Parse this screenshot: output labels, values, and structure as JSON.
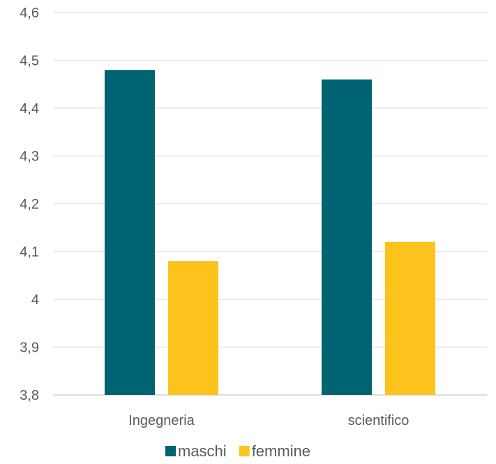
{
  "chart_data": {
    "type": "bar",
    "categories": [
      "Ingegneria",
      "scientifico"
    ],
    "series": [
      {
        "name": "maschi",
        "values": [
          4.48,
          4.46
        ],
        "color": "#006372"
      },
      {
        "name": "femmine",
        "values": [
          4.08,
          4.12
        ],
        "color": "#fcc31c"
      }
    ],
    "ylim": [
      3.8,
      4.6
    ],
    "yticks": [
      "3,8",
      "3,9",
      "4",
      "4,1",
      "4,2",
      "4,3",
      "4,4",
      "4,5",
      "4,6"
    ],
    "ytick_values": [
      3.8,
      3.9,
      4.0,
      4.1,
      4.2,
      4.3,
      4.4,
      4.5,
      4.6
    ],
    "grid": true,
    "legend_position": "bottom",
    "title": "",
    "xlabel": "",
    "ylabel": ""
  }
}
